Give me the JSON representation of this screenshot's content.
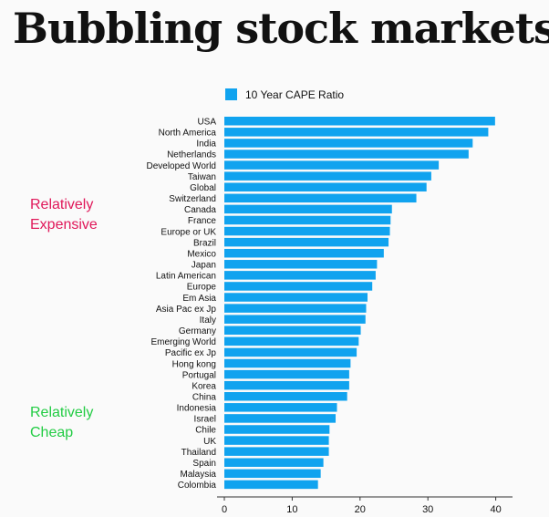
{
  "header": {
    "title": "Bubbling stock markets"
  },
  "annotations": {
    "expensive": {
      "lines": [
        "Relatively",
        "Expensive"
      ],
      "color": "#e0185a"
    },
    "cheap": {
      "lines": [
        "Relatively",
        "Cheap"
      ],
      "color": "#22cc44"
    }
  },
  "chart_data": {
    "type": "bar",
    "orientation": "horizontal",
    "title": "",
    "xlabel": "",
    "ylabel": "",
    "xlim": [
      0,
      42
    ],
    "ticks": [
      0,
      10,
      20,
      30,
      40
    ],
    "grid": false,
    "legend_position": "top-left",
    "bar_color": "#10a3ef",
    "categories": [
      "USA",
      "North America",
      "India",
      "Netherlands",
      "Developed World",
      "Taiwan",
      "Global",
      "Switzerland",
      "Canada",
      "France",
      "Europe or UK",
      "Brazil",
      "Mexico",
      "Japan",
      "Latin American",
      "Europe",
      "Em Asia",
      "Asia Pac ex Jp",
      "Italy",
      "Germany",
      "Emerging World",
      "Pacific ex Jp",
      "Hong kong",
      "Portugal",
      "Korea",
      "China",
      "Indonesia",
      "Israel",
      "Chile",
      "UK",
      "Thailand",
      "Spain",
      "Malaysia",
      "Colombia"
    ],
    "series": [
      {
        "name": "10 Year CAPE Ratio",
        "values": [
          39.9,
          38.9,
          36.6,
          36.0,
          31.6,
          30.5,
          29.8,
          28.3,
          24.7,
          24.5,
          24.4,
          24.2,
          23.5,
          22.5,
          22.3,
          21.8,
          21.1,
          20.9,
          20.8,
          20.1,
          19.8,
          19.5,
          18.6,
          18.4,
          18.4,
          18.1,
          16.6,
          16.4,
          15.5,
          15.4,
          15.4,
          14.6,
          14.2,
          13.8
        ]
      }
    ]
  }
}
